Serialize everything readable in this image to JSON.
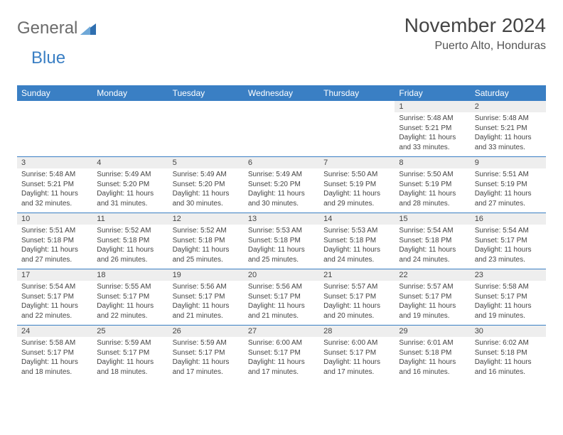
{
  "brand": {
    "part1": "General",
    "part2": "Blue"
  },
  "title": "November 2024",
  "location": "Puerto Alto, Honduras",
  "colors": {
    "header_bg": "#3a7fc4",
    "header_text": "#ffffff",
    "daynum_bg": "#eeeeee",
    "rule": "#3a7fc4",
    "body_text": "#444444",
    "logo_gray": "#6b6b6b",
    "logo_blue": "#3a7fc4",
    "background": "#ffffff"
  },
  "typography": {
    "title_fontsize": 28,
    "location_fontsize": 16,
    "dayheader_fontsize": 12,
    "daynum_fontsize": 11,
    "cell_fontsize": 10
  },
  "day_labels": [
    "Sunday",
    "Monday",
    "Tuesday",
    "Wednesday",
    "Thursday",
    "Friday",
    "Saturday"
  ],
  "weeks": [
    [
      null,
      null,
      null,
      null,
      null,
      {
        "n": "1",
        "sr": "Sunrise: 5:48 AM",
        "ss": "Sunset: 5:21 PM",
        "dl": "Daylight: 11 hours and 33 minutes."
      },
      {
        "n": "2",
        "sr": "Sunrise: 5:48 AM",
        "ss": "Sunset: 5:21 PM",
        "dl": "Daylight: 11 hours and 33 minutes."
      }
    ],
    [
      {
        "n": "3",
        "sr": "Sunrise: 5:48 AM",
        "ss": "Sunset: 5:21 PM",
        "dl": "Daylight: 11 hours and 32 minutes."
      },
      {
        "n": "4",
        "sr": "Sunrise: 5:49 AM",
        "ss": "Sunset: 5:20 PM",
        "dl": "Daylight: 11 hours and 31 minutes."
      },
      {
        "n": "5",
        "sr": "Sunrise: 5:49 AM",
        "ss": "Sunset: 5:20 PM",
        "dl": "Daylight: 11 hours and 30 minutes."
      },
      {
        "n": "6",
        "sr": "Sunrise: 5:49 AM",
        "ss": "Sunset: 5:20 PM",
        "dl": "Daylight: 11 hours and 30 minutes."
      },
      {
        "n": "7",
        "sr": "Sunrise: 5:50 AM",
        "ss": "Sunset: 5:19 PM",
        "dl": "Daylight: 11 hours and 29 minutes."
      },
      {
        "n": "8",
        "sr": "Sunrise: 5:50 AM",
        "ss": "Sunset: 5:19 PM",
        "dl": "Daylight: 11 hours and 28 minutes."
      },
      {
        "n": "9",
        "sr": "Sunrise: 5:51 AM",
        "ss": "Sunset: 5:19 PM",
        "dl": "Daylight: 11 hours and 27 minutes."
      }
    ],
    [
      {
        "n": "10",
        "sr": "Sunrise: 5:51 AM",
        "ss": "Sunset: 5:18 PM",
        "dl": "Daylight: 11 hours and 27 minutes."
      },
      {
        "n": "11",
        "sr": "Sunrise: 5:52 AM",
        "ss": "Sunset: 5:18 PM",
        "dl": "Daylight: 11 hours and 26 minutes."
      },
      {
        "n": "12",
        "sr": "Sunrise: 5:52 AM",
        "ss": "Sunset: 5:18 PM",
        "dl": "Daylight: 11 hours and 25 minutes."
      },
      {
        "n": "13",
        "sr": "Sunrise: 5:53 AM",
        "ss": "Sunset: 5:18 PM",
        "dl": "Daylight: 11 hours and 25 minutes."
      },
      {
        "n": "14",
        "sr": "Sunrise: 5:53 AM",
        "ss": "Sunset: 5:18 PM",
        "dl": "Daylight: 11 hours and 24 minutes."
      },
      {
        "n": "15",
        "sr": "Sunrise: 5:54 AM",
        "ss": "Sunset: 5:18 PM",
        "dl": "Daylight: 11 hours and 24 minutes."
      },
      {
        "n": "16",
        "sr": "Sunrise: 5:54 AM",
        "ss": "Sunset: 5:17 PM",
        "dl": "Daylight: 11 hours and 23 minutes."
      }
    ],
    [
      {
        "n": "17",
        "sr": "Sunrise: 5:54 AM",
        "ss": "Sunset: 5:17 PM",
        "dl": "Daylight: 11 hours and 22 minutes."
      },
      {
        "n": "18",
        "sr": "Sunrise: 5:55 AM",
        "ss": "Sunset: 5:17 PM",
        "dl": "Daylight: 11 hours and 22 minutes."
      },
      {
        "n": "19",
        "sr": "Sunrise: 5:56 AM",
        "ss": "Sunset: 5:17 PM",
        "dl": "Daylight: 11 hours and 21 minutes."
      },
      {
        "n": "20",
        "sr": "Sunrise: 5:56 AM",
        "ss": "Sunset: 5:17 PM",
        "dl": "Daylight: 11 hours and 21 minutes."
      },
      {
        "n": "21",
        "sr": "Sunrise: 5:57 AM",
        "ss": "Sunset: 5:17 PM",
        "dl": "Daylight: 11 hours and 20 minutes."
      },
      {
        "n": "22",
        "sr": "Sunrise: 5:57 AM",
        "ss": "Sunset: 5:17 PM",
        "dl": "Daylight: 11 hours and 19 minutes."
      },
      {
        "n": "23",
        "sr": "Sunrise: 5:58 AM",
        "ss": "Sunset: 5:17 PM",
        "dl": "Daylight: 11 hours and 19 minutes."
      }
    ],
    [
      {
        "n": "24",
        "sr": "Sunrise: 5:58 AM",
        "ss": "Sunset: 5:17 PM",
        "dl": "Daylight: 11 hours and 18 minutes."
      },
      {
        "n": "25",
        "sr": "Sunrise: 5:59 AM",
        "ss": "Sunset: 5:17 PM",
        "dl": "Daylight: 11 hours and 18 minutes."
      },
      {
        "n": "26",
        "sr": "Sunrise: 5:59 AM",
        "ss": "Sunset: 5:17 PM",
        "dl": "Daylight: 11 hours and 17 minutes."
      },
      {
        "n": "27",
        "sr": "Sunrise: 6:00 AM",
        "ss": "Sunset: 5:17 PM",
        "dl": "Daylight: 11 hours and 17 minutes."
      },
      {
        "n": "28",
        "sr": "Sunrise: 6:00 AM",
        "ss": "Sunset: 5:17 PM",
        "dl": "Daylight: 11 hours and 17 minutes."
      },
      {
        "n": "29",
        "sr": "Sunrise: 6:01 AM",
        "ss": "Sunset: 5:18 PM",
        "dl": "Daylight: 11 hours and 16 minutes."
      },
      {
        "n": "30",
        "sr": "Sunrise: 6:02 AM",
        "ss": "Sunset: 5:18 PM",
        "dl": "Daylight: 11 hours and 16 minutes."
      }
    ]
  ]
}
